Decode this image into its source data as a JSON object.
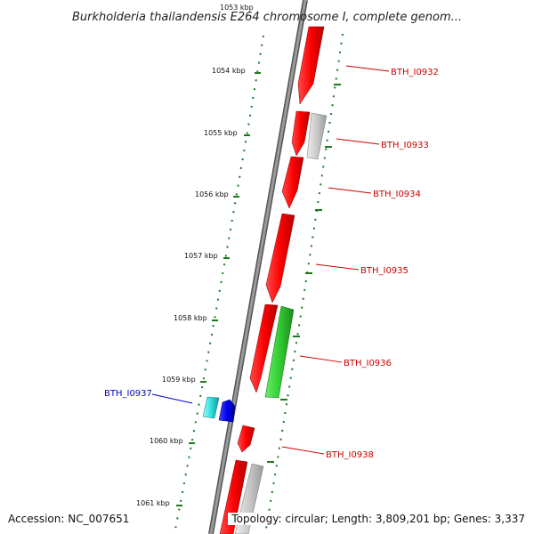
{
  "title": "Burkholderia thailandensis E264 chromosome I, complete genom...",
  "footer": {
    "accession": "Accession: NC_007651",
    "summary": "Topology: circular; Length: 3,809,201 bp; Genes: 3,337"
  },
  "scale": {
    "ticks": [
      {
        "label": "1053 kbp"
      },
      {
        "label": "1054 kbp"
      },
      {
        "label": "1055 kbp"
      },
      {
        "label": "1056 kbp"
      },
      {
        "label": "1057 kbp"
      },
      {
        "label": "1058 kbp"
      },
      {
        "label": "1059 kbp"
      },
      {
        "label": "1060 kbp"
      },
      {
        "label": "1061 kbp"
      }
    ]
  },
  "genes": [
    {
      "label": "BTH_I0932",
      "color": "#cc0000"
    },
    {
      "label": "BTH_I0933",
      "color": "#cc0000"
    },
    {
      "label": "BTH_I0934",
      "color": "#cc0000"
    },
    {
      "label": "BTH_I0935",
      "color": "#cc0000"
    },
    {
      "label": "BTH_I0936",
      "color": "#cc0000"
    },
    {
      "label": "BTH_I0937",
      "color": "#0000cc"
    },
    {
      "label": "BTH_I0938",
      "color": "#cc0000"
    }
  ],
  "colors": {
    "backbone": "#888888",
    "tick": "#1a7a1a",
    "cds_forward": "#ff0000",
    "cds_other": "#cccccc",
    "rna": "#33cc33",
    "cds_reverse": "#0000ee",
    "cds_reverse_light": "#33dddd"
  }
}
